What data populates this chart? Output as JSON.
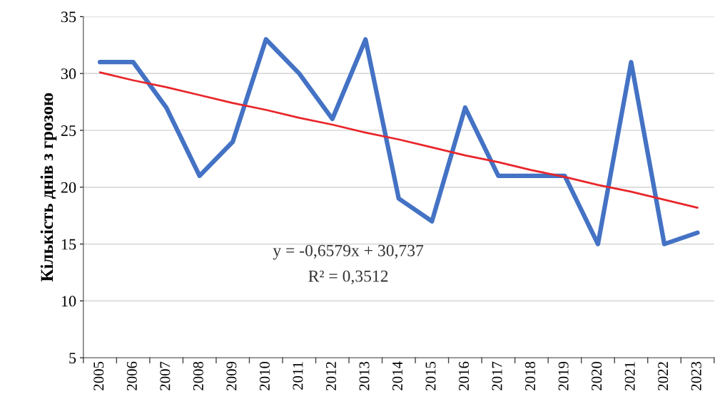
{
  "chart_data": {
    "type": "line",
    "ylabel": "Кількість днів з грозою",
    "categories": [
      "2005",
      "2006",
      "2007",
      "2008",
      "2009",
      "2010",
      "2011",
      "2012",
      "2013",
      "2014",
      "2015",
      "2016",
      "2017",
      "2018",
      "2019",
      "2020",
      "2021",
      "2022",
      "2023"
    ],
    "series": [
      {
        "color": "#4472c4",
        "values": [
          31,
          31,
          27,
          21,
          24,
          33,
          30,
          26,
          33,
          19,
          17,
          27,
          21,
          21,
          21,
          15,
          31,
          15,
          16
        ]
      },
      {
        "color": "#e8262a",
        "values": [
          30.1,
          29.4,
          28.8,
          28.1,
          27.4,
          26.8,
          26.1,
          25.5,
          24.8,
          24.2,
          23.5,
          22.8,
          22.2,
          21.5,
          20.9,
          20.2,
          19.6,
          18.9,
          18.2
        ]
      }
    ],
    "ylim": [
      5,
      35
    ],
    "yticks": [
      5,
      10,
      15,
      20,
      25,
      30,
      35
    ],
    "grid": "y",
    "legend": false,
    "marker": "none",
    "line_style": "solid",
    "annotations": [
      "y = -0,6579x + 30,737",
      "R² = 0,3512"
    ]
  }
}
